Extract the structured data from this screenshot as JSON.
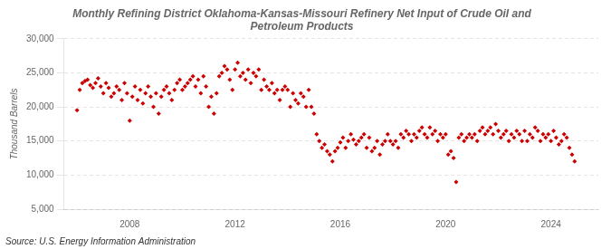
{
  "chart_data": {
    "type": "scatter",
    "title": "Monthly Refining District Oklahoma-Kansas-Missouri Refinery Net Input of Crude Oil and\nPetroleum Products",
    "ylabel": "Thousand Barrels",
    "source": "Source: U.S. Energy Information Administration",
    "color": "#CC0000",
    "marker": "diamond",
    "grid": "y",
    "xlim": [
      2005.5,
      2025.8
    ],
    "xticks": [
      2008,
      2012,
      2016,
      2020,
      2024
    ],
    "ylim": [
      5000,
      30000
    ],
    "yticks": [
      {
        "value": 5000,
        "label": "5,000"
      },
      {
        "value": 10000,
        "label": "10,000"
      },
      {
        "value": 15000,
        "label": "15,000"
      },
      {
        "value": 20000,
        "label": "20,000"
      },
      {
        "value": 25000,
        "label": "25,000"
      },
      {
        "value": 30000,
        "label": "30,000"
      }
    ],
    "x": [
      2006.0,
      2006.1,
      2006.2,
      2006.3,
      2006.4,
      2006.5,
      2006.6,
      2006.7,
      2006.8,
      2006.9,
      2007.0,
      2007.1,
      2007.2,
      2007.3,
      2007.4,
      2007.5,
      2007.6,
      2007.7,
      2007.8,
      2007.9,
      2008.0,
      2008.1,
      2008.2,
      2008.3,
      2008.4,
      2008.5,
      2008.6,
      2008.7,
      2008.8,
      2008.9,
      2009.0,
      2009.1,
      2009.2,
      2009.3,
      2009.4,
      2009.5,
      2009.6,
      2009.7,
      2009.8,
      2009.9,
      2010.0,
      2010.1,
      2010.2,
      2010.3,
      2010.4,
      2010.5,
      2010.6,
      2010.7,
      2010.8,
      2010.9,
      2011.0,
      2011.1,
      2011.2,
      2011.3,
      2011.4,
      2011.5,
      2011.6,
      2011.7,
      2011.8,
      2011.9,
      2012.0,
      2012.1,
      2012.2,
      2012.3,
      2012.4,
      2012.5,
      2012.6,
      2012.7,
      2012.8,
      2012.9,
      2013.0,
      2013.1,
      2013.2,
      2013.3,
      2013.4,
      2013.5,
      2013.6,
      2013.7,
      2013.8,
      2013.9,
      2014.0,
      2014.1,
      2014.2,
      2014.3,
      2014.4,
      2014.5,
      2014.6,
      2014.7,
      2014.8,
      2014.9,
      2015.0,
      2015.1,
      2015.2,
      2015.3,
      2015.4,
      2015.5,
      2015.6,
      2015.7,
      2015.8,
      2015.9,
      2016.0,
      2016.1,
      2016.2,
      2016.3,
      2016.4,
      2016.5,
      2016.6,
      2016.7,
      2016.8,
      2016.9,
      2017.0,
      2017.1,
      2017.2,
      2017.3,
      2017.4,
      2017.5,
      2017.6,
      2017.7,
      2017.8,
      2017.9,
      2018.0,
      2018.1,
      2018.2,
      2018.3,
      2018.4,
      2018.5,
      2018.6,
      2018.7,
      2018.8,
      2018.9,
      2019.0,
      2019.1,
      2019.2,
      2019.3,
      2019.4,
      2019.5,
      2019.6,
      2019.7,
      2019.8,
      2019.9,
      2020.0,
      2020.1,
      2020.2,
      2020.3,
      2020.4,
      2020.5,
      2020.6,
      2020.7,
      2020.8,
      2020.9,
      2021.0,
      2021.1,
      2021.2,
      2021.3,
      2021.4,
      2021.5,
      2021.6,
      2021.7,
      2021.8,
      2021.9,
      2022.0,
      2022.1,
      2022.2,
      2022.3,
      2022.4,
      2022.5,
      2022.6,
      2022.7,
      2022.8,
      2022.9,
      2023.0,
      2023.1,
      2023.2,
      2023.3,
      2023.4,
      2023.5,
      2023.6,
      2023.7,
      2023.8,
      2023.9,
      2024.0,
      2024.1,
      2024.2,
      2024.3,
      2024.4,
      2024.5,
      2024.6,
      2024.7,
      2024.8,
      2024.9
    ],
    "values": [
      19500,
      22500,
      23500,
      23800,
      24000,
      23200,
      22800,
      23500,
      24200,
      23000,
      22000,
      23500,
      22800,
      21500,
      22000,
      23000,
      22500,
      21000,
      23500,
      22000,
      18000,
      21500,
      23000,
      21000,
      22500,
      20500,
      22000,
      23000,
      21500,
      20000,
      22000,
      19000,
      21500,
      22500,
      23000,
      22000,
      21000,
      22500,
      23500,
      24000,
      22500,
      23000,
      23500,
      24000,
      24500,
      23000,
      24000,
      22000,
      24500,
      23000,
      20000,
      21500,
      19000,
      22000,
      24500,
      25000,
      26000,
      25500,
      24000,
      22500,
      25500,
      26500,
      24500,
      25000,
      24000,
      25500,
      23500,
      25000,
      24500,
      25500,
      22500,
      24000,
      23000,
      22500,
      23500,
      22000,
      22500,
      21000,
      22500,
      23000,
      22500,
      20000,
      22000,
      21000,
      20500,
      22000,
      21500,
      20000,
      22500,
      20000,
      19000,
      16000,
      15000,
      14000,
      14500,
      13500,
      13000,
      12000,
      13500,
      14000,
      14800,
      15500,
      14000,
      15000,
      16000,
      15200,
      14500,
      15000,
      15500,
      16000,
      14000,
      15500,
      13500,
      14000,
      15000,
      13000,
      14500,
      15000,
      16000,
      15000,
      14500,
      15000,
      14000,
      16000,
      15500,
      16500,
      16000,
      15000,
      16000,
      15500,
      16500,
      17000,
      16000,
      15500,
      17000,
      16000,
      16500,
      15000,
      16000,
      15500,
      16000,
      13000,
      13500,
      12500,
      9000,
      15500,
      16000,
      15000,
      15500,
      16000,
      15500,
      16000,
      15000,
      16500,
      17000,
      16000,
      16500,
      17000,
      16000,
      17500,
      16500,
      15500,
      16000,
      16500,
      15000,
      16000,
      15500,
      16500,
      16000,
      15000,
      16500,
      15000,
      16000,
      15500,
      17000,
      16500,
      15000,
      16000,
      15500,
      16000,
      15000,
      16500,
      15500,
      14500,
      15000,
      16000,
      15500,
      14000,
      13000,
      12000
    ]
  }
}
